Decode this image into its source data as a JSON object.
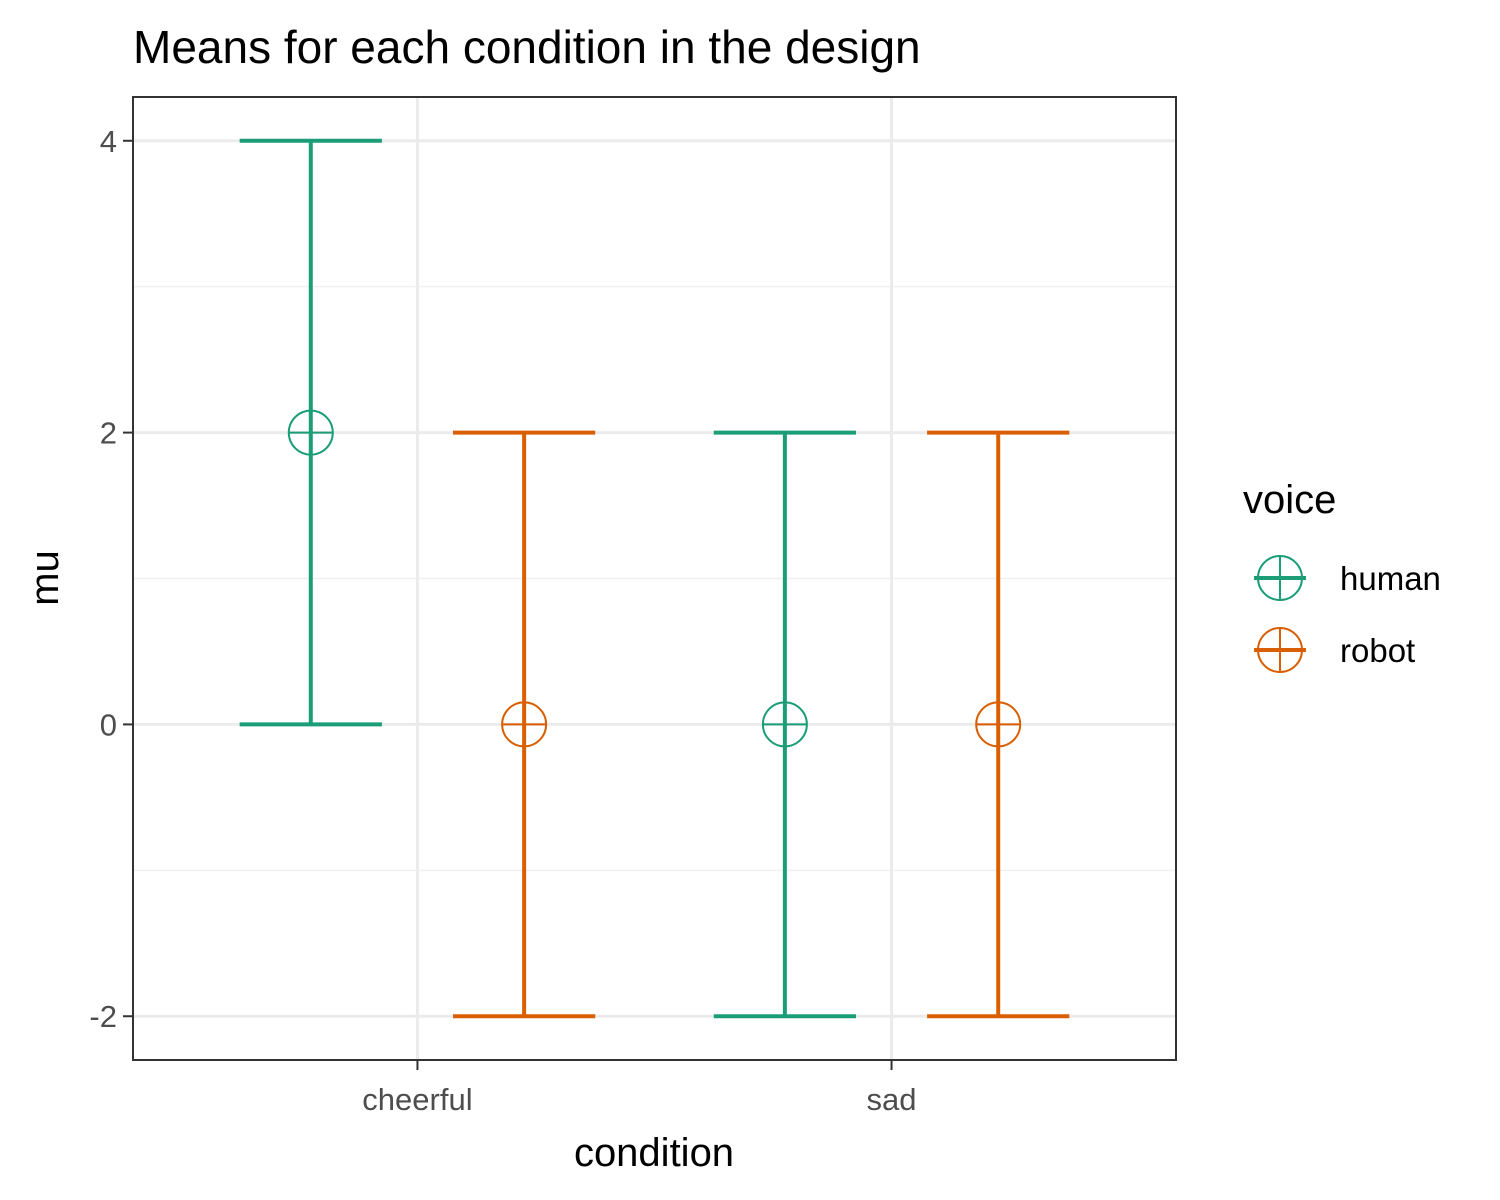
{
  "chart_data": {
    "type": "errorbar",
    "title": "Means for each condition in the design",
    "xlabel": "condition",
    "ylabel": "mu",
    "categories": [
      "cheerful",
      "sad"
    ],
    "ylim": [
      -2.3,
      4.3
    ],
    "yticks": [
      -2,
      0,
      2,
      4
    ],
    "ytick_labels": [
      "-2",
      "0",
      "2",
      "4"
    ],
    "grid": true,
    "legend": {
      "title": "voice",
      "position": "right"
    },
    "series": [
      {
        "name": "human",
        "color": "#1b9e77",
        "values": [
          2,
          0
        ],
        "lower": [
          0,
          -2
        ],
        "upper": [
          4,
          2
        ]
      },
      {
        "name": "robot",
        "color": "#d95f02",
        "values": [
          0,
          0
        ],
        "lower": [
          -2,
          -2
        ],
        "upper": [
          2,
          2
        ]
      }
    ]
  }
}
